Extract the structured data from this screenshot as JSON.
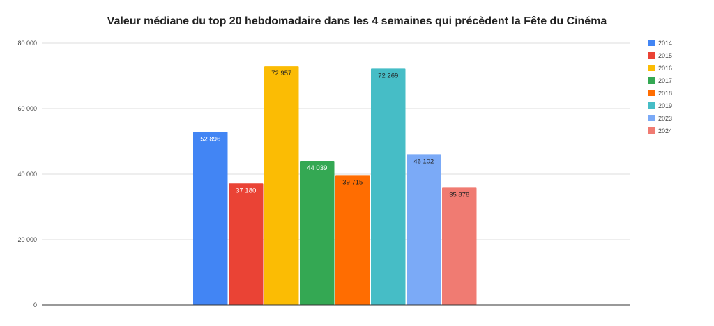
{
  "chart_data": {
    "type": "bar",
    "title": "Valeur médiane du top 20 hebdomadaire dans les 4 semaines qui précèdent la Fête du Cinéma",
    "xlabel": "",
    "ylabel": "",
    "ylim": [
      0,
      80000
    ],
    "yticks": [
      0,
      20000,
      40000,
      60000,
      80000
    ],
    "ytick_labels": [
      "0",
      "20 000",
      "40 000",
      "60 000",
      "80 000"
    ],
    "grid": true,
    "legend": "right",
    "series": [
      {
        "name": "2014",
        "value": 52896,
        "label": "52 896",
        "color": "#4285f4",
        "label_color": "#ffffff"
      },
      {
        "name": "2015",
        "value": 37180,
        "label": "37 180",
        "color": "#ea4335",
        "label_color": "#ffffff"
      },
      {
        "name": "2016",
        "value": 72957,
        "label": "72 957",
        "color": "#fbbc04",
        "label_color": "#222222"
      },
      {
        "name": "2017",
        "value": 44039,
        "label": "44 039",
        "color": "#34a853",
        "label_color": "#ffffff"
      },
      {
        "name": "2018",
        "value": 39715,
        "label": "39 715",
        "color": "#ff6d01",
        "label_color": "#222222"
      },
      {
        "name": "2019",
        "value": 72269,
        "label": "72 269",
        "color": "#46bdc6",
        "label_color": "#222222"
      },
      {
        "name": "2023",
        "value": 46102,
        "label": "46 102",
        "color": "#7baaf7",
        "label_color": "#222222"
      },
      {
        "name": "2024",
        "value": 35878,
        "label": "35 878",
        "color": "#f07b72",
        "label_color": "#222222"
      }
    ]
  }
}
